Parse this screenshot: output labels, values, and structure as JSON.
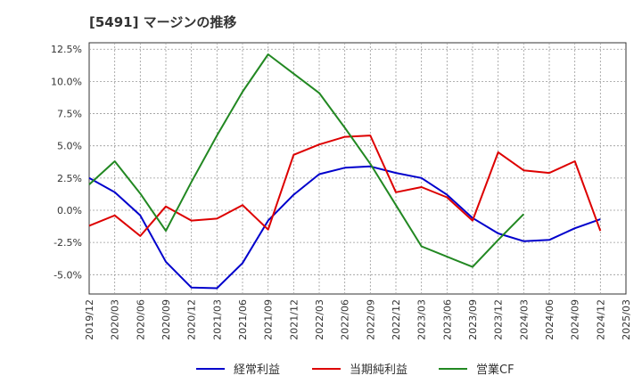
{
  "chart_data": {
    "type": "line",
    "title": "[5491]  マージンの推移",
    "xlabel": "",
    "ylabel": "",
    "ylim": [
      -6.5,
      13.0
    ],
    "y_ticks": [
      "-5.0%",
      "-2.5%",
      "0.0%",
      "2.5%",
      "5.0%",
      "7.5%",
      "10.0%",
      "12.5%"
    ],
    "y_tick_values": [
      -5.0,
      -2.5,
      0.0,
      2.5,
      5.0,
      7.5,
      10.0,
      12.5
    ],
    "x": [
      "2019/12",
      "2020/03",
      "2020/06",
      "2020/09",
      "2020/12",
      "2021/03",
      "2021/06",
      "2021/09",
      "2021/12",
      "2022/03",
      "2022/06",
      "2022/09",
      "2022/12",
      "2023/03",
      "2023/06",
      "2023/09",
      "2023/12",
      "2024/03",
      "2024/06",
      "2024/09",
      "2024/12",
      "2025/03"
    ],
    "grid": true,
    "legend_position": "bottom",
    "series": [
      {
        "name": "経常利益",
        "color": "#0000cc",
        "values": [
          2.5,
          1.4,
          -0.4,
          -4.0,
          -6.0,
          -6.05,
          -4.1,
          -0.8,
          1.2,
          2.8,
          3.3,
          3.4,
          2.9,
          2.5,
          1.2,
          -0.6,
          -1.8,
          -2.4,
          -2.3,
          -1.4,
          -0.7,
          null
        ]
      },
      {
        "name": "当期純利益",
        "color": "#dd0000",
        "values": [
          -1.2,
          -0.4,
          -2.0,
          0.3,
          -0.8,
          -0.65,
          0.4,
          -1.5,
          4.3,
          5.1,
          5.7,
          5.8,
          1.4,
          1.8,
          1.0,
          -0.8,
          4.5,
          3.1,
          2.9,
          3.8,
          -1.6,
          null
        ]
      },
      {
        "name": "営業CF",
        "color": "#228822",
        "values": [
          2.0,
          3.8,
          1.3,
          -1.6,
          2.2,
          5.8,
          9.2,
          12.1,
          10.6,
          9.1,
          6.4,
          3.6,
          0.4,
          -2.8,
          -3.6,
          -4.4,
          -2.3,
          -0.3,
          null,
          null,
          null,
          null
        ]
      }
    ]
  }
}
